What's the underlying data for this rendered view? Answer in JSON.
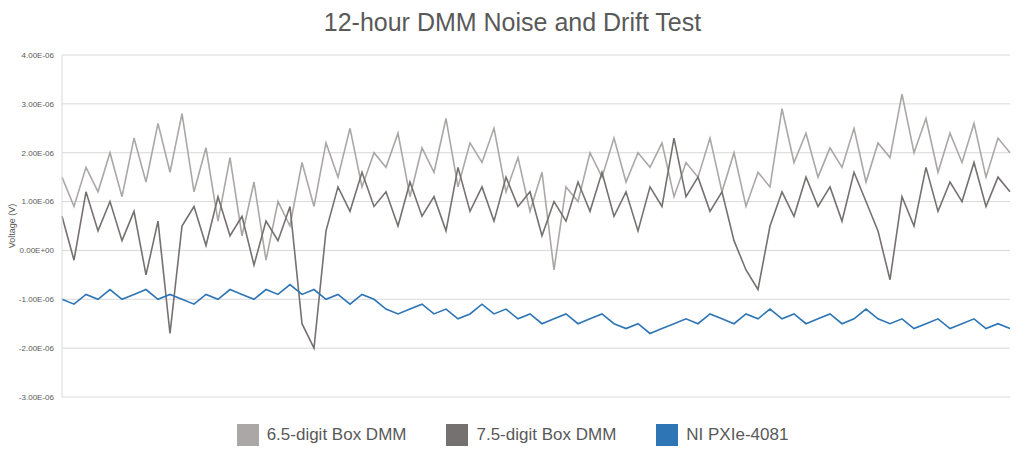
{
  "chart_data": {
    "type": "line",
    "title": "12-hour DMM Noise and Drift Test",
    "y_label": "Voltage (V)",
    "ylim": [
      -3e-06,
      4e-06
    ],
    "yticks": [
      {
        "value": -3e-06,
        "label": "-3.00E-06"
      },
      {
        "value": -2e-06,
        "label": "-2.00E-06"
      },
      {
        "value": -1e-06,
        "label": "-1.00E-06"
      },
      {
        "value": 0,
        "label": "0.00E+00"
      },
      {
        "value": 1e-06,
        "label": "1.00E-06"
      },
      {
        "value": 2e-06,
        "label": "2.00E-06"
      },
      {
        "value": 3e-06,
        "label": "3.00E-06"
      },
      {
        "value": 4e-06,
        "label": "4.00E-06"
      }
    ],
    "grid": true,
    "legend": "bottom",
    "tick_labels": "y",
    "series": [
      {
        "name": "6.5-digit Box DMM",
        "color": "#aba7a7",
        "values": [
          1.5e-06,
          9e-07,
          1.7e-06,
          1.2e-06,
          2e-06,
          1.1e-06,
          2.3e-06,
          1.4e-06,
          2.6e-06,
          1.6e-06,
          2.8e-06,
          1.2e-06,
          2.1e-06,
          6e-07,
          1.9e-06,
          3e-07,
          1.4e-06,
          -2e-07,
          1e-06,
          5e-07,
          1.8e-06,
          9e-07,
          2.2e-06,
          1.5e-06,
          2.5e-06,
          1.3e-06,
          2e-06,
          1.7e-06,
          2.4e-06,
          1.1e-06,
          2.1e-06,
          1.6e-06,
          2.7e-06,
          1.3e-06,
          2.2e-06,
          1.8e-06,
          2.5e-06,
          1.2e-06,
          1.9e-06,
          8e-07,
          1.6e-06,
          -4e-07,
          1.3e-06,
          1e-06,
          2e-06,
          1.5e-06,
          2.3e-06,
          1.4e-06,
          2e-06,
          1.7e-06,
          2.2e-06,
          1.1e-06,
          1.8e-06,
          1.5e-06,
          2.3e-06,
          1.2e-06,
          2e-06,
          9e-07,
          1.6e-06,
          1.3e-06,
          2.9e-06,
          1.8e-06,
          2.4e-06,
          1.5e-06,
          2.1e-06,
          1.7e-06,
          2.5e-06,
          1.4e-06,
          2.2e-06,
          1.9e-06,
          3.2e-06,
          2e-06,
          2.7e-06,
          1.6e-06,
          2.4e-06,
          1.8e-06,
          2.6e-06,
          1.5e-06,
          2.3e-06,
          2e-06
        ]
      },
      {
        "name": "7.5-digit Box DMM",
        "color": "#767171",
        "values": [
          7e-07,
          -2e-07,
          1.2e-06,
          4e-07,
          1e-06,
          2e-07,
          8e-07,
          -5e-07,
          6e-07,
          -1.7e-06,
          5e-07,
          9e-07,
          1e-07,
          1.1e-06,
          3e-07,
          7e-07,
          -3e-07,
          6e-07,
          2e-07,
          9e-07,
          -1.5e-06,
          -2e-06,
          4e-07,
          1.3e-06,
          8e-07,
          1.6e-06,
          9e-07,
          1.2e-06,
          5e-07,
          1.4e-06,
          7e-07,
          1.1e-06,
          4e-07,
          1.7e-06,
          8e-07,
          1.3e-06,
          6e-07,
          1.5e-06,
          9e-07,
          1.2e-06,
          3e-07,
          1e-06,
          6e-07,
          1.4e-06,
          8e-07,
          1.6e-06,
          7e-07,
          1.2e-06,
          4e-07,
          1.3e-06,
          9e-07,
          2.3e-06,
          1.1e-06,
          1.5e-06,
          8e-07,
          1.2e-06,
          2e-07,
          -4e-07,
          -8e-07,
          5e-07,
          1.2e-06,
          7e-07,
          1.5e-06,
          9e-07,
          1.3e-06,
          6e-07,
          1.6e-06,
          1e-06,
          4e-07,
          -6e-07,
          1.1e-06,
          5e-07,
          1.7e-06,
          8e-07,
          1.4e-06,
          1e-06,
          1.8e-06,
          9e-07,
          1.5e-06,
          1.2e-06
        ]
      },
      {
        "name": "NI PXIe-4081",
        "color": "#2e75b6",
        "values": [
          -1e-06,
          -1.1e-06,
          -9e-07,
          -1e-06,
          -8e-07,
          -1e-06,
          -9e-07,
          -8e-07,
          -1e-06,
          -9e-07,
          -1e-06,
          -1.1e-06,
          -9e-07,
          -1e-06,
          -8e-07,
          -9e-07,
          -1e-06,
          -8e-07,
          -9e-07,
          -7e-07,
          -9e-07,
          -8e-07,
          -1e-06,
          -9e-07,
          -1.1e-06,
          -9e-07,
          -1e-06,
          -1.2e-06,
          -1.3e-06,
          -1.2e-06,
          -1.1e-06,
          -1.3e-06,
          -1.2e-06,
          -1.4e-06,
          -1.3e-06,
          -1.1e-06,
          -1.3e-06,
          -1.2e-06,
          -1.4e-06,
          -1.3e-06,
          -1.5e-06,
          -1.4e-06,
          -1.3e-06,
          -1.5e-06,
          -1.4e-06,
          -1.3e-06,
          -1.5e-06,
          -1.6e-06,
          -1.5e-06,
          -1.7e-06,
          -1.6e-06,
          -1.5e-06,
          -1.4e-06,
          -1.5e-06,
          -1.3e-06,
          -1.4e-06,
          -1.5e-06,
          -1.3e-06,
          -1.4e-06,
          -1.2e-06,
          -1.4e-06,
          -1.3e-06,
          -1.5e-06,
          -1.4e-06,
          -1.3e-06,
          -1.5e-06,
          -1.4e-06,
          -1.2e-06,
          -1.4e-06,
          -1.5e-06,
          -1.4e-06,
          -1.6e-06,
          -1.5e-06,
          -1.4e-06,
          -1.6e-06,
          -1.5e-06,
          -1.4e-06,
          -1.6e-06,
          -1.5e-06,
          -1.6e-06
        ]
      }
    ]
  }
}
